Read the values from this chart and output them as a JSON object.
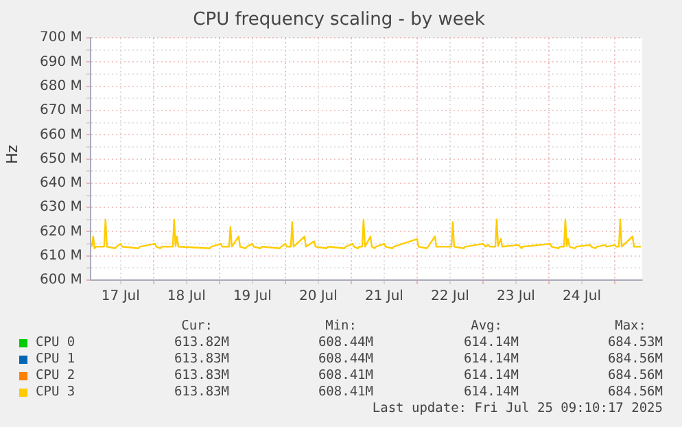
{
  "chart_data": {
    "type": "line",
    "title": "CPU frequency scaling - by week",
    "ylabel": "Hz",
    "x": [
      "2025-07-17T01:30",
      "2025-07-17T02:00",
      "2025-07-17T02:30",
      "2025-07-17T03:00",
      "2025-07-17T06:00",
      "2025-07-17T06:30",
      "2025-07-17T07:00",
      "2025-07-17T10:00",
      "2025-07-17T10:30",
      "2025-07-17T12:00",
      "2025-07-17T12:30",
      "2025-07-17T18:30",
      "2025-07-17T19:00",
      "2025-07-18T00:30",
      "2025-07-18T01:00",
      "2025-07-18T02:30",
      "2025-07-18T03:00",
      "2025-07-18T07:00",
      "2025-07-18T07:30",
      "2025-07-18T08:00",
      "2025-07-18T08:30",
      "2025-07-18T09:00",
      "2025-07-18T20:30",
      "2025-07-18T21:00",
      "2025-07-19T00:30",
      "2025-07-19T01:00",
      "2025-07-19T03:30",
      "2025-07-19T04:00",
      "2025-07-19T04:30",
      "2025-07-19T07:00",
      "2025-07-19T07:30",
      "2025-07-19T09:30",
      "2025-07-19T10:00",
      "2025-07-19T12:00",
      "2025-07-19T12:30",
      "2025-07-19T15:00",
      "2025-07-19T15:30",
      "2025-07-19T22:00",
      "2025-07-19T22:30",
      "2025-07-20T00:00",
      "2025-07-20T00:30",
      "2025-07-20T02:00",
      "2025-07-20T02:30",
      "2025-07-20T03:00",
      "2025-07-20T07:00",
      "2025-07-20T07:30",
      "2025-07-20T10:30",
      "2025-07-20T11:00",
      "2025-07-20T15:00",
      "2025-07-20T15:30",
      "2025-07-20T21:30",
      "2025-07-20T22:00",
      "2025-07-21T00:30",
      "2025-07-21T01:00",
      "2025-07-21T02:30",
      "2025-07-21T03:00",
      "2025-07-21T04:00",
      "2025-07-21T04:30",
      "2025-07-21T05:00",
      "2025-07-21T07:00",
      "2025-07-21T07:30",
      "2025-07-21T08:30",
      "2025-07-21T09:00",
      "2025-07-21T12:00",
      "2025-07-21T12:30",
      "2025-07-21T15:00",
      "2025-07-21T15:30",
      "2025-07-22T00:00",
      "2025-07-22T00:30",
      "2025-07-22T03:30",
      "2025-07-22T04:00",
      "2025-07-22T06:30",
      "2025-07-22T07:00",
      "2025-07-22T12:30",
      "2025-07-22T13:00",
      "2025-07-22T13:30",
      "2025-07-22T17:00",
      "2025-07-22T17:30",
      "2025-07-23T00:00",
      "2025-07-23T01:00",
      "2025-07-23T02:00",
      "2025-07-23T02:30",
      "2025-07-23T04:30",
      "2025-07-23T05:00",
      "2025-07-23T05:30",
      "2025-07-23T06:30",
      "2025-07-23T07:00",
      "2025-07-23T13:00",
      "2025-07-23T13:30",
      "2025-07-23T14:00",
      "2025-07-23T14:30",
      "2025-07-24T00:30",
      "2025-07-24T01:00",
      "2025-07-24T03:30",
      "2025-07-24T04:00",
      "2025-07-24T05:30",
      "2025-07-24T06:00",
      "2025-07-24T06:30",
      "2025-07-24T07:00",
      "2025-07-24T07:30",
      "2025-07-24T09:30",
      "2025-07-24T10:00",
      "2025-07-24T15:00",
      "2025-07-24T15:30",
      "2025-07-24T17:00",
      "2025-07-24T17:30",
      "2025-07-24T20:30",
      "2025-07-24T21:00",
      "2025-07-25T00:00",
      "2025-07-25T00:30",
      "2025-07-25T01:30",
      "2025-07-25T02:00",
      "2025-07-25T02:30",
      "2025-07-25T06:30",
      "2025-07-25T07:00",
      "2025-07-25T09:30"
    ],
    "series": [
      {
        "name": "CPU 0",
        "color": "#00cc00",
        "values": [
          null,
          null,
          null,
          null,
          null,
          null,
          null,
          null,
          null,
          null,
          null,
          null,
          null,
          null,
          null,
          null,
          null,
          null,
          null,
          null,
          null,
          null,
          null,
          null,
          null,
          null,
          null,
          null,
          null,
          null,
          null,
          null,
          null,
          null,
          null,
          null,
          null,
          null,
          null,
          null,
          null,
          null,
          null,
          null,
          null,
          null,
          null,
          null,
          null,
          null,
          null,
          null,
          null,
          null,
          null,
          null,
          null,
          null,
          null,
          null,
          null,
          null,
          null,
          null,
          null,
          null,
          null,
          null,
          null,
          null,
          null,
          null,
          null,
          null,
          null,
          null,
          null,
          null,
          null,
          null,
          null,
          null,
          null,
          null,
          null,
          null,
          null,
          null,
          null,
          null,
          null,
          null,
          null,
          null,
          null,
          null,
          null,
          null,
          null,
          null,
          null,
          null,
          null,
          null,
          null,
          null,
          null,
          null,
          null,
          null,
          null,
          null,
          null,
          null,
          null,
          null
        ]
      },
      {
        "name": "CPU 1",
        "color": "#0066b3",
        "values": [
          null,
          null,
          null,
          null,
          null,
          null,
          null,
          null,
          null,
          null,
          null,
          null,
          null,
          null,
          null,
          null,
          null,
          null,
          null,
          null,
          null,
          null,
          null,
          null,
          null,
          null,
          null,
          null,
          null,
          null,
          null,
          null,
          null,
          null,
          null,
          null,
          null,
          null,
          null,
          null,
          null,
          null,
          null,
          null,
          null,
          null,
          null,
          null,
          null,
          null,
          null,
          null,
          null,
          null,
          null,
          null,
          null,
          null,
          null,
          null,
          null,
          null,
          null,
          null,
          null,
          null,
          null,
          null,
          null,
          null,
          null,
          null,
          null,
          null,
          null,
          null,
          null,
          null,
          null,
          null,
          null,
          null,
          null,
          null,
          null,
          null,
          null,
          null,
          null,
          null,
          null,
          null,
          null,
          null,
          null,
          null,
          null,
          null,
          null,
          null,
          null,
          null,
          null,
          null,
          null,
          null,
          null,
          null,
          null,
          null,
          null,
          null,
          null,
          null,
          null,
          null
        ]
      },
      {
        "name": "CPU 2",
        "color": "#ff8000",
        "values": [
          null,
          null,
          null,
          null,
          null,
          null,
          null,
          null,
          null,
          null,
          null,
          null,
          null,
          null,
          null,
          null,
          null,
          null,
          null,
          null,
          null,
          null,
          null,
          null,
          null,
          null,
          null,
          null,
          null,
          null,
          null,
          null,
          null,
          null,
          null,
          null,
          null,
          null,
          null,
          null,
          null,
          null,
          null,
          null,
          null,
          null,
          null,
          null,
          null,
          null,
          null,
          null,
          null,
          null,
          null,
          null,
          null,
          null,
          null,
          null,
          null,
          null,
          null,
          null,
          null,
          null,
          null,
          null,
          null,
          null,
          null,
          null,
          null,
          null,
          null,
          null,
          null,
          null,
          null,
          null,
          null,
          null,
          null,
          null,
          null,
          null,
          null,
          null,
          null,
          null,
          null,
          null,
          null,
          null,
          null,
          null,
          null,
          null,
          null,
          null,
          null,
          null,
          null,
          null,
          null,
          null,
          null,
          null,
          null,
          null,
          null,
          null,
          null,
          null,
          null,
          null
        ]
      },
      {
        "name": "CPU 3",
        "color": "#ffcc00",
        "values": [
          613.8,
          618,
          613.1,
          613.8,
          613.8,
          625,
          613.8,
          613.1,
          613.8,
          615,
          613.8,
          613.1,
          613.8,
          615,
          613.8,
          613.1,
          613.8,
          613.8,
          625,
          614,
          618,
          613.8,
          613.1,
          613.8,
          615,
          613.8,
          613.8,
          622,
          613.8,
          618,
          613.8,
          613.1,
          613.8,
          615,
          613.8,
          613.1,
          613.8,
          613.1,
          613.8,
          615,
          613.8,
          613.8,
          624,
          613.8,
          618,
          613.8,
          616,
          613.8,
          613.1,
          613.8,
          613.1,
          613.8,
          615,
          613.8,
          613.1,
          613.8,
          613.8,
          625,
          613.8,
          618,
          613.8,
          613.1,
          613.8,
          615,
          613.8,
          613.1,
          613.8,
          617,
          613.8,
          613.1,
          613.8,
          618,
          613.8,
          613.8,
          624,
          613.8,
          613.1,
          613.8,
          615,
          613.8,
          614.5,
          613.8,
          613.8,
          625,
          614,
          617,
          613.8,
          614.5,
          613.8,
          613.1,
          613.8,
          615,
          613.8,
          613.1,
          613.8,
          613.8,
          625,
          614,
          617,
          613.8,
          613.1,
          613.8,
          614.5,
          613.8,
          613.1,
          613.8,
          614.5,
          613.8,
          614.5,
          613.8,
          613.8,
          625,
          613.8,
          618,
          613.8,
          613.8
        ]
      }
    ],
    "xlim": [
      "2025-07-17T01:00",
      "2025-07-25T10:00"
    ],
    "xticks": [
      {
        "value": "2025-07-17T12:00",
        "label": "17 Jul"
      },
      {
        "value": "2025-07-18T00:00",
        "label": null
      },
      {
        "value": "2025-07-18T12:00",
        "label": "18 Jul"
      },
      {
        "value": "2025-07-19T00:00",
        "label": null
      },
      {
        "value": "2025-07-19T12:00",
        "label": "19 Jul"
      },
      {
        "value": "2025-07-20T00:00",
        "label": null
      },
      {
        "value": "2025-07-20T12:00",
        "label": "20 Jul"
      },
      {
        "value": "2025-07-21T00:00",
        "label": null
      },
      {
        "value": "2025-07-21T12:00",
        "label": "21 Jul"
      },
      {
        "value": "2025-07-22T00:00",
        "label": null
      },
      {
        "value": "2025-07-22T12:00",
        "label": "22 Jul"
      },
      {
        "value": "2025-07-23T00:00",
        "label": null
      },
      {
        "value": "2025-07-23T12:00",
        "label": "23 Jul"
      },
      {
        "value": "2025-07-24T00:00",
        "label": null
      },
      {
        "value": "2025-07-24T12:00",
        "label": "24 Jul"
      },
      {
        "value": "2025-07-25T00:00",
        "label": null
      }
    ],
    "ylim": [
      600,
      700
    ],
    "yticks": [
      {
        "value": 600,
        "label": "600 M"
      },
      {
        "value": 605,
        "label": null
      },
      {
        "value": 610,
        "label": "610 M"
      },
      {
        "value": 615,
        "label": null
      },
      {
        "value": 620,
        "label": "620 M"
      },
      {
        "value": 625,
        "label": null
      },
      {
        "value": 630,
        "label": "630 M"
      },
      {
        "value": 635,
        "label": null
      },
      {
        "value": 640,
        "label": "640 M"
      },
      {
        "value": 645,
        "label": null
      },
      {
        "value": 650,
        "label": "650 M"
      },
      {
        "value": 655,
        "label": null
      },
      {
        "value": 660,
        "label": "660 M"
      },
      {
        "value": 665,
        "label": null
      },
      {
        "value": 670,
        "label": "670 M"
      },
      {
        "value": 675,
        "label": null
      },
      {
        "value": 680,
        "label": "680 M"
      },
      {
        "value": 685,
        "label": null
      },
      {
        "value": 690,
        "label": "690 M"
      },
      {
        "value": 695,
        "label": null
      },
      {
        "value": 700,
        "label": "700 M"
      }
    ],
    "grid": true,
    "legend": "bottom",
    "marker": "none",
    "line_style": "solid",
    "annotations": [
      "Cur:",
      "Min:",
      "Avg:",
      "Max:",
      "613.82M",
      "608.44M",
      "614.14M",
      "684.53M",
      "613.83M",
      "608.44M",
      "614.14M",
      "684.56M",
      "613.83M",
      "608.41M",
      "614.14M",
      "684.56M",
      "613.83M",
      "608.41M",
      "614.14M",
      "684.56M",
      "Last update: Fri Jul 25 09:10:17 2025"
    ]
  }
}
